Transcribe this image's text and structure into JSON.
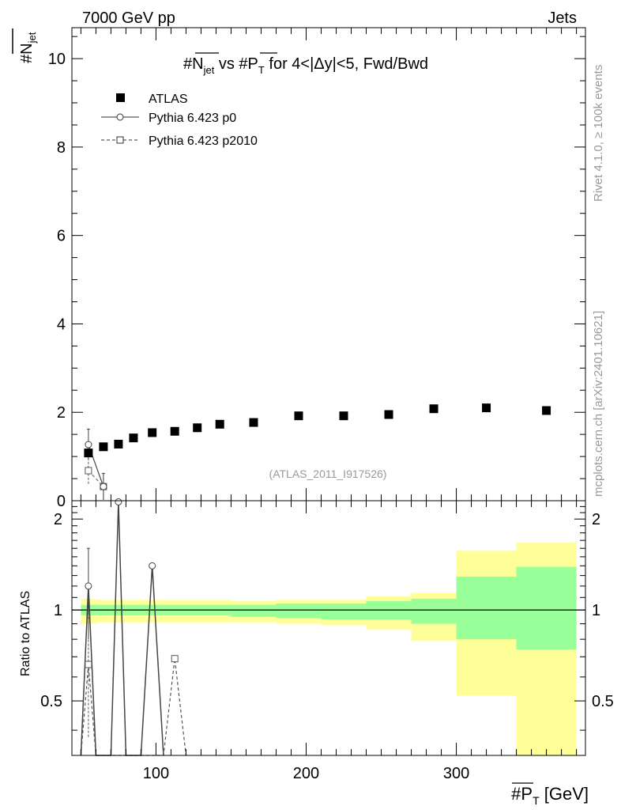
{
  "header": {
    "energy_label": "7000 GeV pp",
    "category_label": "Jets"
  },
  "side_labels": {
    "rivet": "Rivet 4.1.0, ≥ 100k events",
    "mcplots": "mcplots.cern.ch [arXiv:2401.10621]"
  },
  "watermark": "(ATLAS_2011_I917526)",
  "chart_data": [
    {
      "type": "scatter",
      "panel": "main",
      "title": "#N_jet vs #P_T for 4<|Δy|<5, Fwd/Bwd",
      "title_parts": {
        "a": "#N",
        "a_sub": "jet",
        "b": " vs #P",
        "b_sub": "T",
        "c": " for 4<|Δy|<5, Fwd/Bwd"
      },
      "ylabel": {
        "main": "#N",
        "sub": "jet"
      },
      "xlabel": {
        "main": "#P",
        "sub": "T",
        "unit": " [GeV]"
      },
      "xlim": [
        44,
        386
      ],
      "ylim": [
        0,
        10.7
      ],
      "yticks": [
        0,
        2,
        4,
        6,
        8,
        10
      ],
      "legend_position": "top-left",
      "series": [
        {
          "name": "ATLAS",
          "style": "filled-square",
          "x": [
            55,
            65,
            75,
            85,
            97.5,
            112.5,
            127.5,
            142.5,
            165,
            195,
            225,
            255,
            285,
            320,
            360
          ],
          "y": [
            1.08,
            1.22,
            1.28,
            1.42,
            1.54,
            1.57,
            1.65,
            1.73,
            1.77,
            1.92,
            1.92,
            1.95,
            2.08,
            2.1,
            2.04
          ]
        },
        {
          "name": "Pythia 6.423 p0",
          "style": "open-circle-solid",
          "x": [
            55,
            65
          ],
          "y": [
            1.27,
            0.32
          ],
          "yerr": [
            0.35,
            0.3
          ]
        },
        {
          "name": "Pythia 6.423 p2010",
          "style": "open-square-dashed",
          "x": [
            55,
            65
          ],
          "y": [
            0.68,
            0.32
          ],
          "yerr": [
            0.3,
            0.3
          ]
        }
      ]
    },
    {
      "type": "line",
      "panel": "ratio",
      "ylabel": "Ratio to ATLAS",
      "xlim": [
        44,
        386
      ],
      "ylim": [
        0.33,
        2.3
      ],
      "yticks": [
        0.5,
        1,
        2
      ],
      "xticks": [
        100,
        200,
        300
      ],
      "bands": {
        "edges": [
          50,
          60,
          70,
          80,
          90,
          105,
          120,
          135,
          150,
          180,
          210,
          240,
          270,
          300,
          340,
          380
        ],
        "yellow": [
          [
            0.9,
            1.09
          ],
          [
            0.91,
            1.08
          ],
          [
            0.91,
            1.08
          ],
          [
            0.91,
            1.08
          ],
          [
            0.91,
            1.08
          ],
          [
            0.91,
            1.08
          ],
          [
            0.91,
            1.08
          ],
          [
            0.91,
            1.08
          ],
          [
            0.91,
            1.07
          ],
          [
            0.9,
            1.08
          ],
          [
            0.89,
            1.08
          ],
          [
            0.86,
            1.11
          ],
          [
            0.79,
            1.14
          ],
          [
            0.52,
            1.57
          ],
          [
            0.33,
            1.67
          ]
        ],
        "green": [
          [
            0.96,
            1.04
          ],
          [
            0.96,
            1.04
          ],
          [
            0.96,
            1.04
          ],
          [
            0.96,
            1.04
          ],
          [
            0.96,
            1.04
          ],
          [
            0.96,
            1.04
          ],
          [
            0.96,
            1.04
          ],
          [
            0.96,
            1.04
          ],
          [
            0.95,
            1.04
          ],
          [
            0.94,
            1.05
          ],
          [
            0.93,
            1.05
          ],
          [
            0.93,
            1.07
          ],
          [
            0.9,
            1.09
          ],
          [
            0.8,
            1.29
          ],
          [
            0.74,
            1.39
          ]
        ]
      },
      "series": [
        {
          "name": "Pythia 6.423 p0",
          "style": "solid",
          "x": [
            50,
            55,
            60,
            70,
            75,
            80,
            90,
            97.5,
            105
          ],
          "y": [
            0.3,
            1.2,
            0.3,
            0.3,
            2.28,
            0.3,
            0.3,
            1.4,
            0.3
          ],
          "markers": [
            {
              "x": 55,
              "y": 1.2,
              "err": 0.4
            },
            {
              "x": 75,
              "y": 2.28
            },
            {
              "x": 97.5,
              "y": 1.4
            }
          ]
        },
        {
          "name": "Pythia 6.423 p2010",
          "style": "dashed",
          "x": [
            50,
            55,
            60,
            105,
            112.5,
            120
          ],
          "y": [
            0.3,
            0.66,
            0.3,
            0.3,
            0.69,
            0.3
          ],
          "markers": [
            {
              "x": 55,
              "y": 0.66,
              "err": 0.28
            },
            {
              "x": 112.5,
              "y": 0.69
            }
          ]
        }
      ]
    }
  ]
}
